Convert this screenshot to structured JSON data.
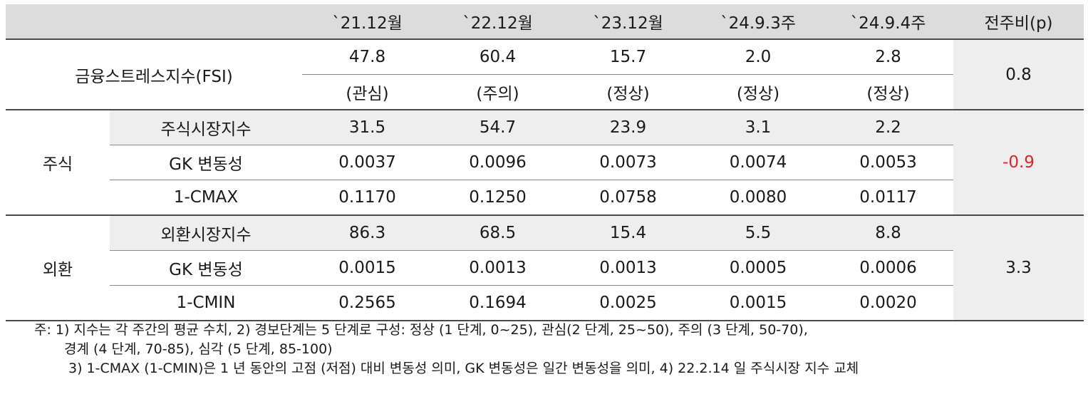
{
  "header": {
    "blank": "",
    "columns": [
      "`21.12월",
      "`22.12월",
      "`23.12월",
      "`24.9.3주",
      "`24.9.4주",
      "전주비(p)"
    ]
  },
  "fsi": {
    "label": "금융스트레스지수(FSI)",
    "values": [
      "47.8",
      "60.4",
      "15.7",
      "2.0",
      "2.8"
    ],
    "levels": [
      "(관심)",
      "(주의)",
      "(정상)",
      "(정상)",
      "(정상)"
    ],
    "change": "0.8"
  },
  "stock": {
    "group": "주식",
    "change": "-0.9",
    "rows": [
      {
        "label": "주식시장지수",
        "values": [
          "31.5",
          "54.7",
          "23.9",
          "3.1",
          "2.2"
        ]
      },
      {
        "label": "GK 변동성",
        "values": [
          "0.0037",
          "0.0096",
          "0.0073",
          "0.0074",
          "0.0053"
        ]
      },
      {
        "label": "1-CMAX",
        "values": [
          "0.1170",
          "0.1250",
          "0.0758",
          "0.0080",
          "0.0117"
        ]
      }
    ]
  },
  "fx": {
    "group": "외환",
    "change": "3.3",
    "rows": [
      {
        "label": "외환시장지수",
        "values": [
          "86.3",
          "68.5",
          "15.4",
          "5.5",
          "8.8"
        ]
      },
      {
        "label": "GK 변동성",
        "values": [
          "0.0015",
          "0.0013",
          "0.0013",
          "0.0005",
          "0.0006"
        ]
      },
      {
        "label": "1-CMIN",
        "values": [
          "0.2565",
          "0.1694",
          "0.0025",
          "0.0015",
          "0.0020"
        ]
      }
    ]
  },
  "notes": {
    "line1": "주: 1) 지수는 각 주간의 평균 수치, 2) 경보단계는 5 단계로 구성: 정상 (1 단계, 0~25), 관심(2 단계, 25~50), 주의 (3 단계, 50-70),",
    "line2": "경계 (4 단계, 70-85), 심각 (5 단계, 85-100)",
    "line3": "3) 1-CMAX (1-CMIN)은 1 년 동안의 고점 (저점) 대비 변동성 의미, GK 변동성은 일간 변동성을 의미, 4) 22.2.14 일 주식시장 지수 교체"
  },
  "colors": {
    "header_bg": "#dcdcdc",
    "shade_bg": "#eeeeee",
    "negative": "#e0242a"
  }
}
